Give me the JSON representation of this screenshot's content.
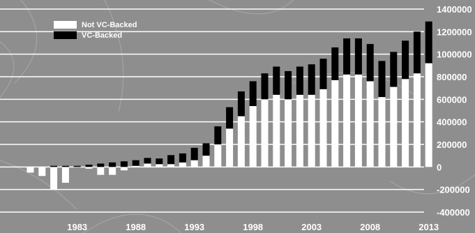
{
  "chart_data": {
    "type": "bar",
    "stacked": true,
    "title": "",
    "xlabel": "",
    "ylabel": "",
    "ylim": [
      -400000,
      1400000
    ],
    "yticks": [
      1400000,
      1200000,
      1000000,
      800000,
      600000,
      400000,
      200000,
      0,
      -200000,
      -400000
    ],
    "ytick_labels": [
      "1400000",
      "1200000",
      "1000000",
      "800000",
      "600000",
      "400000",
      "200000",
      "0",
      "-200000",
      "-400000"
    ],
    "xtick_labels": [
      "1983",
      "1988",
      "1993",
      "1998",
      "2003",
      "2008",
      "2013"
    ],
    "grid": true,
    "legend_position": "top-left",
    "colors": {
      "background": "#8e8e8e",
      "not_vc": "#ffffff",
      "vc": "#000000",
      "grid": "#ffffff"
    },
    "categories": [
      1979,
      1980,
      1981,
      1982,
      1983,
      1984,
      1985,
      1986,
      1987,
      1988,
      1989,
      1990,
      1991,
      1992,
      1993,
      1994,
      1995,
      1996,
      1997,
      1998,
      1999,
      2000,
      2001,
      2002,
      2003,
      2004,
      2005,
      2006,
      2007,
      2008,
      2009,
      2010,
      2011,
      2012,
      2013
    ],
    "series": [
      {
        "name": "Not VC-Backed",
        "values": [
          -50000,
          -80000,
          -200000,
          -140000,
          0,
          -15000,
          -70000,
          -70000,
          -30000,
          10000,
          30000,
          25000,
          25000,
          40000,
          60000,
          100000,
          200000,
          340000,
          450000,
          540000,
          600000,
          640000,
          600000,
          640000,
          640000,
          690000,
          770000,
          820000,
          820000,
          760000,
          620000,
          710000,
          780000,
          830000,
          920000
        ]
      },
      {
        "name": "VC-Backed",
        "values": [
          0,
          0,
          10000,
          10000,
          10000,
          20000,
          30000,
          40000,
          50000,
          50000,
          50000,
          50000,
          80000,
          80000,
          110000,
          110000,
          160000,
          190000,
          220000,
          220000,
          230000,
          250000,
          250000,
          250000,
          270000,
          270000,
          290000,
          320000,
          320000,
          330000,
          320000,
          310000,
          340000,
          370000,
          370000
        ]
      }
    ]
  }
}
